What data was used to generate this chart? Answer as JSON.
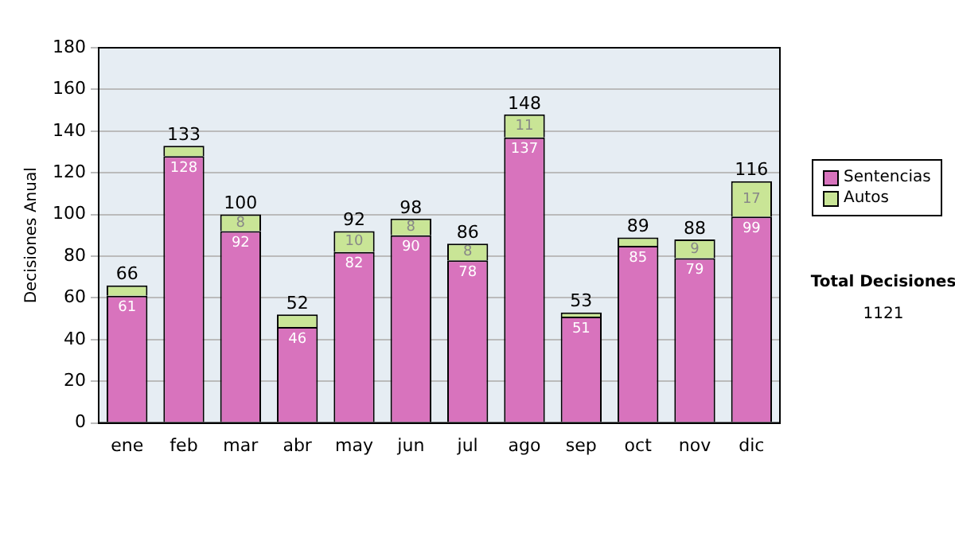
{
  "chart_data": {
    "type": "bar",
    "ylabel": "Decisiones Anual",
    "stacked": true,
    "grid": "y",
    "legend": "right",
    "categories": [
      "ene",
      "feb",
      "mar",
      "abr",
      "may",
      "jun",
      "jul",
      "ago",
      "sep",
      "oct",
      "nov",
      "dic"
    ],
    "series": [
      {
        "name": "Sentencias",
        "color": "#d873bd",
        "values": [
          61,
          128,
          92,
          46,
          82,
          90,
          78,
          137,
          51,
          85,
          79,
          99
        ],
        "value_labels": [
          "61",
          "128",
          "92",
          "46",
          "82",
          "90",
          "78",
          "137",
          "51",
          "85",
          "79",
          "99"
        ]
      },
      {
        "name": "Autos",
        "color": "#c9e596",
        "values": [
          5,
          5,
          8,
          6,
          10,
          8,
          8,
          11,
          2,
          4,
          9,
          17
        ],
        "value_labels": [
          null,
          null,
          "8",
          null,
          "10",
          "8",
          "8",
          "11",
          null,
          null,
          "9",
          "17"
        ]
      }
    ],
    "totals": [
      "66",
      "133",
      "100",
      "52",
      "92",
      "98",
      "86",
      "148",
      "53",
      "89",
      "88",
      "116"
    ],
    "ylim": [
      0,
      180
    ],
    "yticks": [
      0,
      20,
      40,
      60,
      80,
      100,
      120,
      140,
      160,
      180
    ],
    "annotations": [
      "Total Decisiones",
      "1121"
    ]
  }
}
